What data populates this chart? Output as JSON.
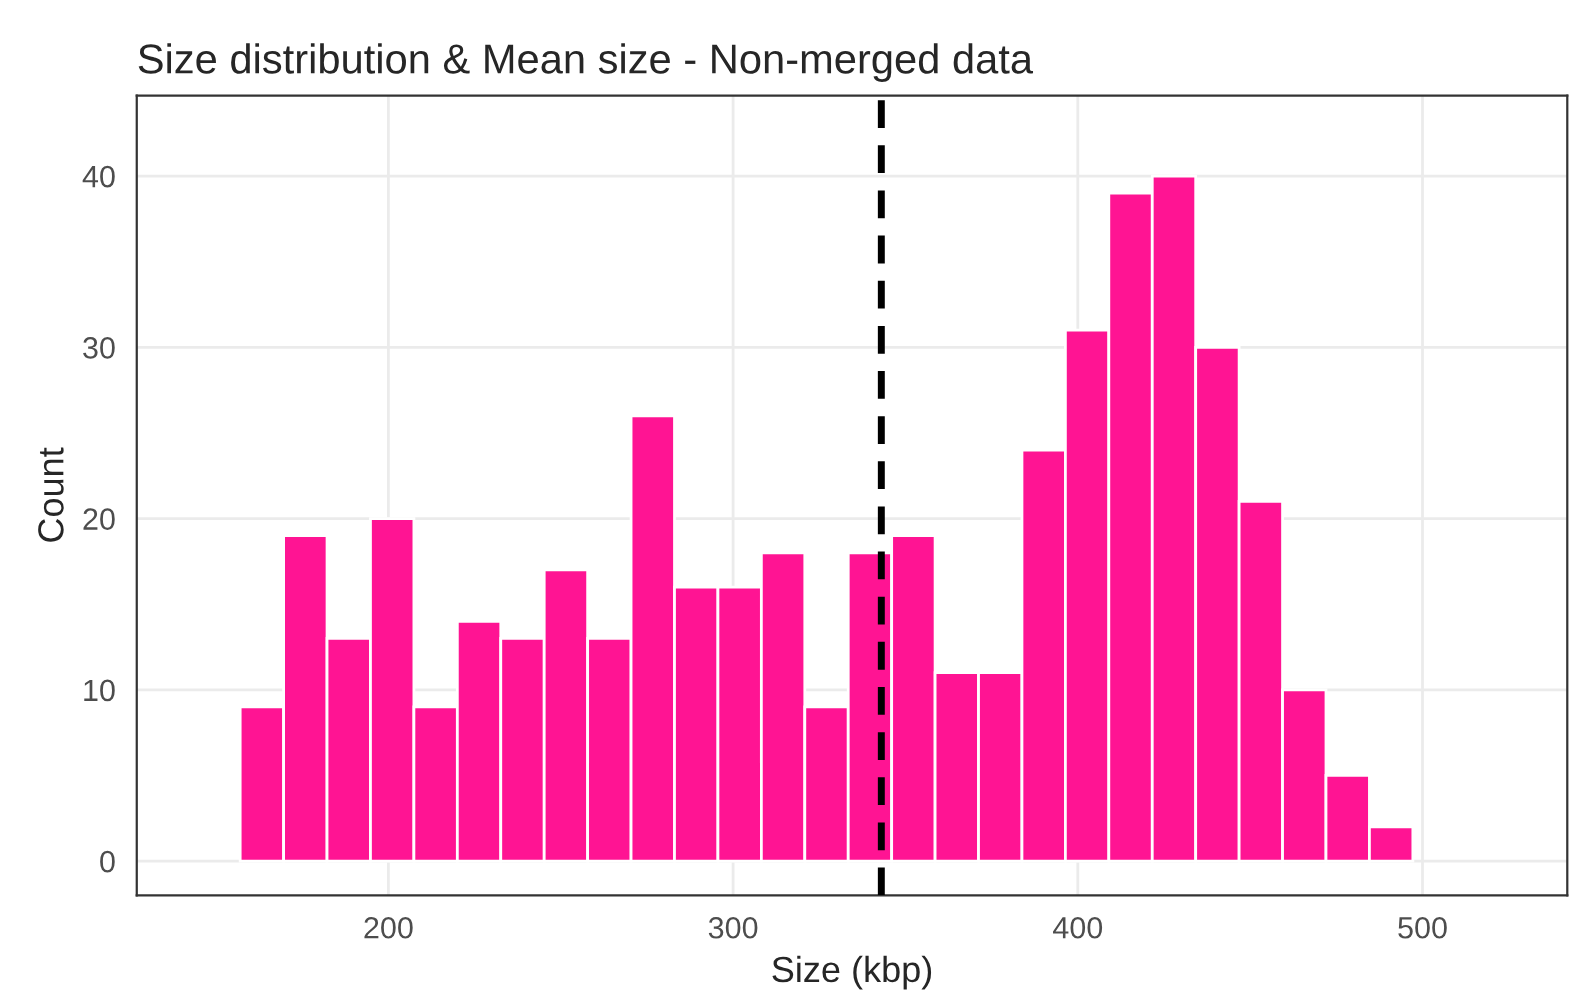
{
  "chart_data": {
    "type": "histogram",
    "title": "Size distribution & Mean size - Non-merged data",
    "xlabel": "Size (kbp)",
    "ylabel": "Count",
    "bins": [
      157,
      169.6,
      182.2,
      194.8,
      207.4,
      220,
      232.6,
      245.2,
      257.8,
      270.4,
      283,
      295.6,
      308.2,
      320.8,
      333.4,
      346,
      358.6,
      371.2,
      383.8,
      396.4,
      409,
      421.6,
      434.2,
      446.8,
      459.4,
      472,
      484.6,
      497.2
    ],
    "values": [
      9,
      19,
      13,
      20,
      9,
      14,
      13,
      17,
      13,
      26,
      16,
      16,
      18,
      9,
      18,
      19,
      11,
      11,
      24,
      31,
      39,
      40,
      30,
      21,
      10,
      5,
      2
    ],
    "color": "#ff1493",
    "xlim": [
      127,
      542
    ],
    "xticks": [
      200,
      300,
      400,
      500
    ],
    "ylim": [
      -2,
      44.7
    ],
    "yticks": [
      0,
      10,
      20,
      30,
      40
    ],
    "ref_lines": [
      {
        "axis": "x",
        "value": 343,
        "color": "#000000",
        "line_style": "dashed"
      }
    ],
    "grid": true
  }
}
